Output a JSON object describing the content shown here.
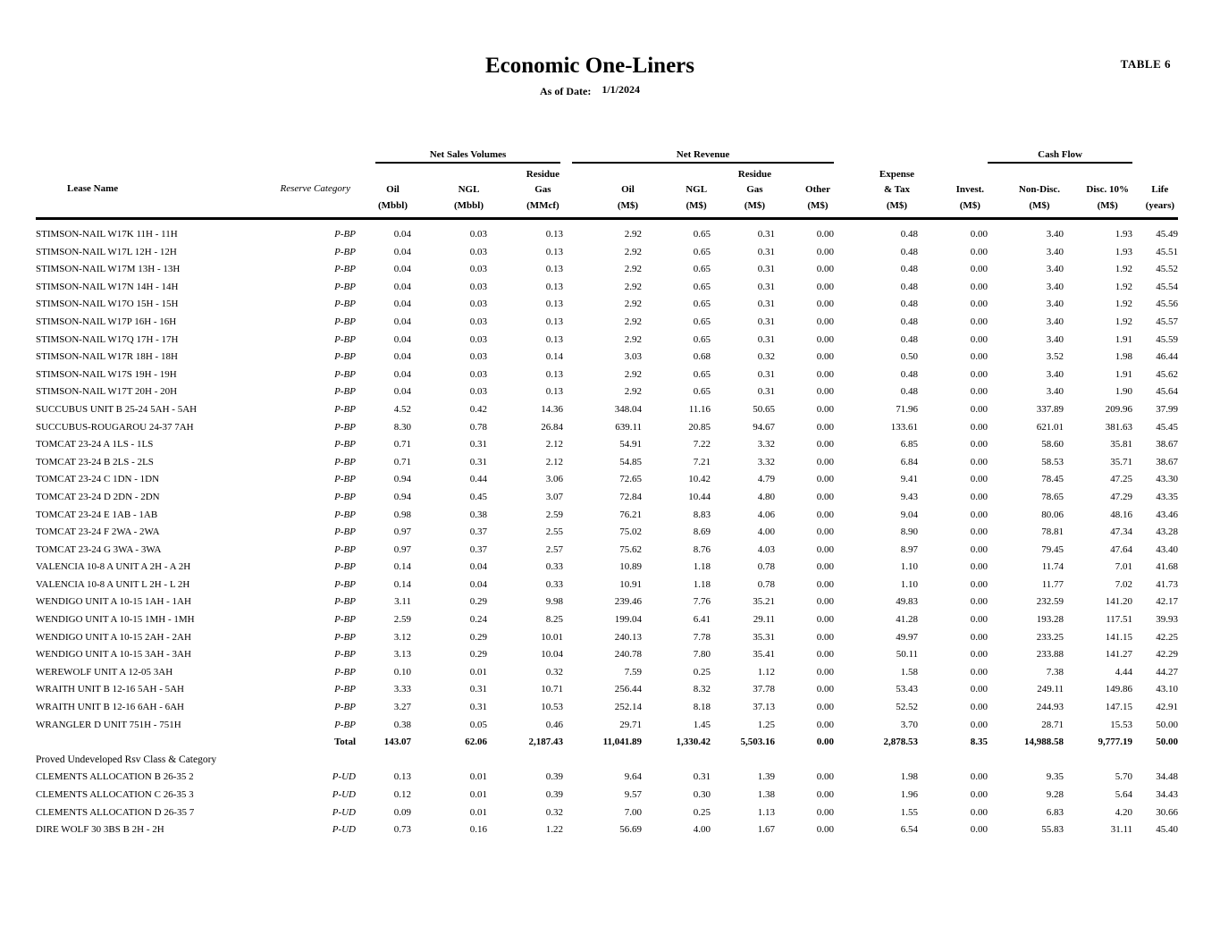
{
  "page": {
    "table_tag": "TABLE 6",
    "title": "Economic One-Liners",
    "as_of_label": "As of Date:",
    "as_of_value": "1/1/2024"
  },
  "table": {
    "group_headers": {
      "net_sales_volumes": "Net Sales Volumes",
      "net_revenue": "Net Revenue",
      "cash_flow": "Cash Flow"
    },
    "column_headers": {
      "lease_name": "Lease Name",
      "reserve_category": "Reserve Category",
      "oil_vol": "Oil\n(Mbbl)",
      "ngl_vol": "NGL\n(Mbbl)",
      "residue_gas_vol": "Residue\nGas\n(MMcf)",
      "oil_rev": "Oil\n(M$)",
      "ngl_rev": "NGL\n(M$)",
      "residue_gas_rev": "Residue\nGas\n(M$)",
      "other_rev": "Other\n(M$)",
      "expense_tax": "Expense\n& Tax\n(M$)",
      "invest": "Invest.\n(M$)",
      "non_disc": "Non-Disc.\n(M$)",
      "disc_10": "Disc. 10%\n(M$)",
      "life": "Life\n(years)"
    },
    "rows": [
      {
        "type": "data",
        "lease": "STIMSON-NAIL W17K 11H - 11H",
        "category": "P-BP",
        "values": [
          "0.04",
          "0.03",
          "0.13",
          "2.92",
          "0.65",
          "0.31",
          "0.00",
          "0.48",
          "0.00",
          "3.40",
          "1.93",
          "45.49"
        ]
      },
      {
        "type": "data",
        "lease": "STIMSON-NAIL W17L 12H - 12H",
        "category": "P-BP",
        "values": [
          "0.04",
          "0.03",
          "0.13",
          "2.92",
          "0.65",
          "0.31",
          "0.00",
          "0.48",
          "0.00",
          "3.40",
          "1.93",
          "45.51"
        ]
      },
      {
        "type": "data",
        "lease": "STIMSON-NAIL W17M 13H - 13H",
        "category": "P-BP",
        "values": [
          "0.04",
          "0.03",
          "0.13",
          "2.92",
          "0.65",
          "0.31",
          "0.00",
          "0.48",
          "0.00",
          "3.40",
          "1.92",
          "45.52"
        ]
      },
      {
        "type": "data",
        "lease": "STIMSON-NAIL W17N 14H - 14H",
        "category": "P-BP",
        "values": [
          "0.04",
          "0.03",
          "0.13",
          "2.92",
          "0.65",
          "0.31",
          "0.00",
          "0.48",
          "0.00",
          "3.40",
          "1.92",
          "45.54"
        ]
      },
      {
        "type": "data",
        "lease": "STIMSON-NAIL W17O 15H - 15H",
        "category": "P-BP",
        "values": [
          "0.04",
          "0.03",
          "0.13",
          "2.92",
          "0.65",
          "0.31",
          "0.00",
          "0.48",
          "0.00",
          "3.40",
          "1.92",
          "45.56"
        ]
      },
      {
        "type": "data",
        "lease": "STIMSON-NAIL W17P 16H - 16H",
        "category": "P-BP",
        "values": [
          "0.04",
          "0.03",
          "0.13",
          "2.92",
          "0.65",
          "0.31",
          "0.00",
          "0.48",
          "0.00",
          "3.40",
          "1.92",
          "45.57"
        ]
      },
      {
        "type": "data",
        "lease": "STIMSON-NAIL W17Q 17H - 17H",
        "category": "P-BP",
        "values": [
          "0.04",
          "0.03",
          "0.13",
          "2.92",
          "0.65",
          "0.31",
          "0.00",
          "0.48",
          "0.00",
          "3.40",
          "1.91",
          "45.59"
        ]
      },
      {
        "type": "data",
        "lease": "STIMSON-NAIL W17R 18H - 18H",
        "category": "P-BP",
        "values": [
          "0.04",
          "0.03",
          "0.14",
          "3.03",
          "0.68",
          "0.32",
          "0.00",
          "0.50",
          "0.00",
          "3.52",
          "1.98",
          "46.44"
        ]
      },
      {
        "type": "data",
        "lease": "STIMSON-NAIL W17S 19H - 19H",
        "category": "P-BP",
        "values": [
          "0.04",
          "0.03",
          "0.13",
          "2.92",
          "0.65",
          "0.31",
          "0.00",
          "0.48",
          "0.00",
          "3.40",
          "1.91",
          "45.62"
        ]
      },
      {
        "type": "data",
        "lease": "STIMSON-NAIL W17T 20H - 20H",
        "category": "P-BP",
        "values": [
          "0.04",
          "0.03",
          "0.13",
          "2.92",
          "0.65",
          "0.31",
          "0.00",
          "0.48",
          "0.00",
          "3.40",
          "1.90",
          "45.64"
        ]
      },
      {
        "type": "data",
        "lease": "SUCCUBUS UNIT B 25-24 5AH - 5AH",
        "category": "P-BP",
        "values": [
          "4.52",
          "0.42",
          "14.36",
          "348.04",
          "11.16",
          "50.65",
          "0.00",
          "71.96",
          "0.00",
          "337.89",
          "209.96",
          "37.99"
        ]
      },
      {
        "type": "data",
        "lease": "SUCCUBUS-ROUGAROU 24-37 7AH",
        "category": "P-BP",
        "values": [
          "8.30",
          "0.78",
          "26.84",
          "639.11",
          "20.85",
          "94.67",
          "0.00",
          "133.61",
          "0.00",
          "621.01",
          "381.63",
          "45.45"
        ]
      },
      {
        "type": "data",
        "lease": "TOMCAT 23-24 A 1LS - 1LS",
        "category": "P-BP",
        "values": [
          "0.71",
          "0.31",
          "2.12",
          "54.91",
          "7.22",
          "3.32",
          "0.00",
          "6.85",
          "0.00",
          "58.60",
          "35.81",
          "38.67"
        ]
      },
      {
        "type": "data",
        "lease": "TOMCAT 23-24 B 2LS - 2LS",
        "category": "P-BP",
        "values": [
          "0.71",
          "0.31",
          "2.12",
          "54.85",
          "7.21",
          "3.32",
          "0.00",
          "6.84",
          "0.00",
          "58.53",
          "35.71",
          "38.67"
        ]
      },
      {
        "type": "data",
        "lease": "TOMCAT 23-24 C 1DN - 1DN",
        "category": "P-BP",
        "values": [
          "0.94",
          "0.44",
          "3.06",
          "72.65",
          "10.42",
          "4.79",
          "0.00",
          "9.41",
          "0.00",
          "78.45",
          "47.25",
          "43.30"
        ]
      },
      {
        "type": "data",
        "lease": "TOMCAT 23-24 D 2DN - 2DN",
        "category": "P-BP",
        "values": [
          "0.94",
          "0.45",
          "3.07",
          "72.84",
          "10.44",
          "4.80",
          "0.00",
          "9.43",
          "0.00",
          "78.65",
          "47.29",
          "43.35"
        ]
      },
      {
        "type": "data",
        "lease": "TOMCAT 23-24 E 1AB - 1AB",
        "category": "P-BP",
        "values": [
          "0.98",
          "0.38",
          "2.59",
          "76.21",
          "8.83",
          "4.06",
          "0.00",
          "9.04",
          "0.00",
          "80.06",
          "48.16",
          "43.46"
        ]
      },
      {
        "type": "data",
        "lease": "TOMCAT 23-24 F 2WA - 2WA",
        "category": "P-BP",
        "values": [
          "0.97",
          "0.37",
          "2.55",
          "75.02",
          "8.69",
          "4.00",
          "0.00",
          "8.90",
          "0.00",
          "78.81",
          "47.34",
          "43.28"
        ]
      },
      {
        "type": "data",
        "lease": "TOMCAT 23-24 G 3WA - 3WA",
        "category": "P-BP",
        "values": [
          "0.97",
          "0.37",
          "2.57",
          "75.62",
          "8.76",
          "4.03",
          "0.00",
          "8.97",
          "0.00",
          "79.45",
          "47.64",
          "43.40"
        ]
      },
      {
        "type": "data",
        "lease": "VALENCIA 10-8 A UNIT A 2H - A 2H",
        "category": "P-BP",
        "values": [
          "0.14",
          "0.04",
          "0.33",
          "10.89",
          "1.18",
          "0.78",
          "0.00",
          "1.10",
          "0.00",
          "11.74",
          "7.01",
          "41.68"
        ]
      },
      {
        "type": "data",
        "lease": "VALENCIA 10-8 A UNIT L 2H - L 2H",
        "category": "P-BP",
        "values": [
          "0.14",
          "0.04",
          "0.33",
          "10.91",
          "1.18",
          "0.78",
          "0.00",
          "1.10",
          "0.00",
          "11.77",
          "7.02",
          "41.73"
        ]
      },
      {
        "type": "data",
        "lease": "WENDIGO UNIT A 10-15 1AH - 1AH",
        "category": "P-BP",
        "values": [
          "3.11",
          "0.29",
          "9.98",
          "239.46",
          "7.76",
          "35.21",
          "0.00",
          "49.83",
          "0.00",
          "232.59",
          "141.20",
          "42.17"
        ]
      },
      {
        "type": "data",
        "lease": "WENDIGO UNIT A 10-15 1MH - 1MH",
        "category": "P-BP",
        "values": [
          "2.59",
          "0.24",
          "8.25",
          "199.04",
          "6.41",
          "29.11",
          "0.00",
          "41.28",
          "0.00",
          "193.28",
          "117.51",
          "39.93"
        ]
      },
      {
        "type": "data",
        "lease": "WENDIGO UNIT A 10-15 2AH - 2AH",
        "category": "P-BP",
        "values": [
          "3.12",
          "0.29",
          "10.01",
          "240.13",
          "7.78",
          "35.31",
          "0.00",
          "49.97",
          "0.00",
          "233.25",
          "141.15",
          "42.25"
        ]
      },
      {
        "type": "data",
        "lease": "WENDIGO UNIT A 10-15 3AH - 3AH",
        "category": "P-BP",
        "values": [
          "3.13",
          "0.29",
          "10.04",
          "240.78",
          "7.80",
          "35.41",
          "0.00",
          "50.11",
          "0.00",
          "233.88",
          "141.27",
          "42.29"
        ]
      },
      {
        "type": "data",
        "lease": "WEREWOLF UNIT A 12-05 3AH",
        "category": "P-BP",
        "values": [
          "0.10",
          "0.01",
          "0.32",
          "7.59",
          "0.25",
          "1.12",
          "0.00",
          "1.58",
          "0.00",
          "7.38",
          "4.44",
          "44.27"
        ]
      },
      {
        "type": "data",
        "lease": "WRAITH UNIT B 12-16 5AH - 5AH",
        "category": "P-BP",
        "values": [
          "3.33",
          "0.31",
          "10.71",
          "256.44",
          "8.32",
          "37.78",
          "0.00",
          "53.43",
          "0.00",
          "249.11",
          "149.86",
          "43.10"
        ]
      },
      {
        "type": "data",
        "lease": "WRAITH UNIT B 12-16 6AH - 6AH",
        "category": "P-BP",
        "values": [
          "3.27",
          "0.31",
          "10.53",
          "252.14",
          "8.18",
          "37.13",
          "0.00",
          "52.52",
          "0.00",
          "244.93",
          "147.15",
          "42.91"
        ]
      },
      {
        "type": "data",
        "lease": "WRANGLER D UNIT 751H - 751H",
        "category": "P-BP",
        "values": [
          "0.38",
          "0.05",
          "0.46",
          "29.71",
          "1.45",
          "1.25",
          "0.00",
          "3.70",
          "0.00",
          "28.71",
          "15.53",
          "50.00"
        ]
      },
      {
        "type": "total",
        "lease": "",
        "category": "Total",
        "values": [
          "143.07",
          "62.06",
          "2,187.43",
          "11,041.89",
          "1,330.42",
          "5,503.16",
          "0.00",
          "2,878.53",
          "8.35",
          "14,988.58",
          "9,777.19",
          "50.00"
        ]
      },
      {
        "type": "section",
        "label": "Proved Undeveloped Rsv Class & Category"
      },
      {
        "type": "data",
        "lease": "CLEMENTS ALLOCATION B 26-35 2",
        "category": "P-UD",
        "values": [
          "0.13",
          "0.01",
          "0.39",
          "9.64",
          "0.31",
          "1.39",
          "0.00",
          "1.98",
          "0.00",
          "9.35",
          "5.70",
          "34.48"
        ]
      },
      {
        "type": "data",
        "lease": "CLEMENTS ALLOCATION C 26-35 3",
        "category": "P-UD",
        "values": [
          "0.12",
          "0.01",
          "0.39",
          "9.57",
          "0.30",
          "1.38",
          "0.00",
          "1.96",
          "0.00",
          "9.28",
          "5.64",
          "34.43"
        ]
      },
      {
        "type": "data",
        "lease": "CLEMENTS ALLOCATION D 26-35 7",
        "category": "P-UD",
        "values": [
          "0.09",
          "0.01",
          "0.32",
          "7.00",
          "0.25",
          "1.13",
          "0.00",
          "1.55",
          "0.00",
          "6.83",
          "4.20",
          "30.66"
        ]
      },
      {
        "type": "data",
        "lease": "DIRE WOLF 30 3BS B 2H - 2H",
        "category": "P-UD",
        "values": [
          "0.73",
          "0.16",
          "1.22",
          "56.69",
          "4.00",
          "1.67",
          "0.00",
          "6.54",
          "0.00",
          "55.83",
          "31.11",
          "45.40"
        ]
      }
    ]
  }
}
